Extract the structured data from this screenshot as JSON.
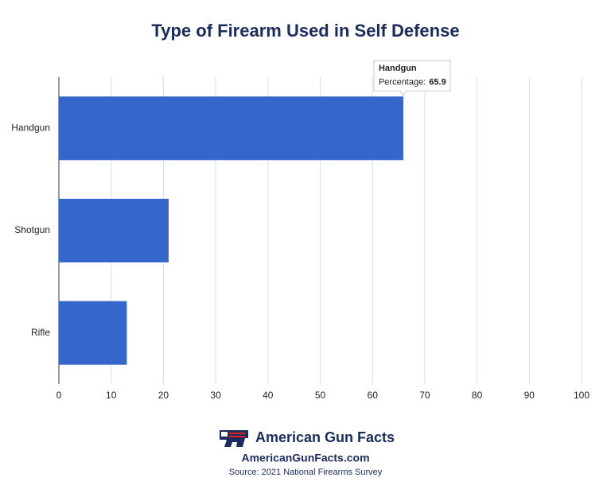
{
  "chart_data": {
    "type": "bar",
    "orientation": "horizontal",
    "title": "Type of Firearm Used in Self Defense",
    "categories": [
      "Handgun",
      "Shotgun",
      "Rifle"
    ],
    "series": [
      {
        "name": "Percentage",
        "color": "#3566cc",
        "values": [
          65.9,
          21,
          13
        ]
      }
    ],
    "xlim": [
      0,
      100
    ],
    "xticks": [
      0,
      10,
      20,
      30,
      40,
      50,
      60,
      70,
      80,
      90,
      100
    ],
    "grid": true,
    "tooltip_label": "Percentage:"
  },
  "footer": {
    "brand": "American Gun Facts",
    "url": "AmericanGunFacts.com",
    "source": "Source: 2021 National Firearms Survey"
  }
}
